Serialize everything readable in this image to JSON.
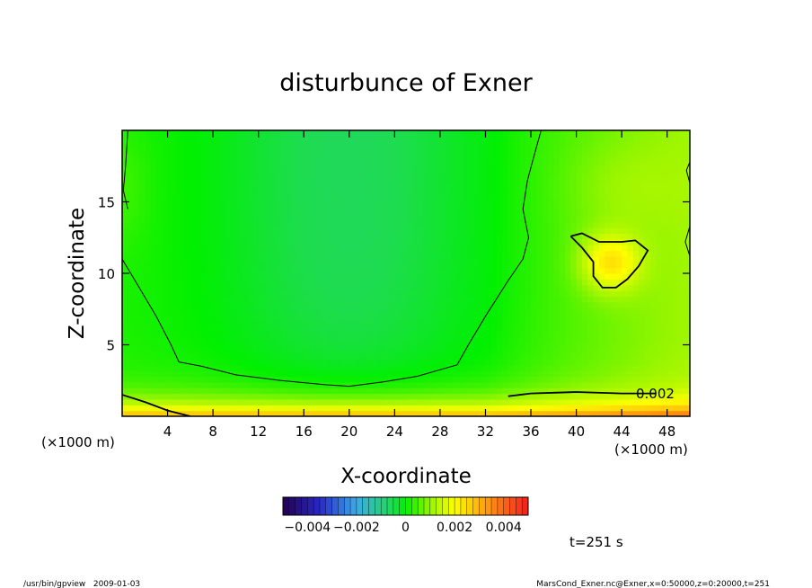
{
  "chart_data": {
    "type": "heatmap",
    "title": "disturbunce of Exner",
    "xlabel": "X-coordinate",
    "ylabel": "Z-coordinate",
    "x_unit": "(×1000 m)",
    "x_unit_right": "(×1000 m)",
    "xlim": [
      0,
      50
    ],
    "ylim": [
      0,
      20
    ],
    "x_ticks": [
      4,
      8,
      12,
      16,
      20,
      24,
      28,
      32,
      36,
      40,
      44,
      48
    ],
    "y_ticks": [
      5,
      10,
      15
    ],
    "colorbar": {
      "range": [
        -0.005,
        0.005
      ],
      "ticks": [
        {
          "value": -0.004,
          "label": "−0.004"
        },
        {
          "value": -0.002,
          "label": "−0.002"
        },
        {
          "value": 0,
          "label": "0"
        },
        {
          "value": 0.002,
          "label": "0.002"
        },
        {
          "value": 0.004,
          "label": "0.004"
        }
      ]
    },
    "contour_label": "0.002",
    "contours": [
      {
        "name": "lower-right",
        "level": 0.002,
        "points": [
          [
            34,
            1.4
          ],
          [
            36,
            1.6
          ],
          [
            40,
            1.7
          ],
          [
            44,
            1.6
          ],
          [
            47,
            1.6
          ]
        ]
      },
      {
        "name": "lower-left",
        "level": 0.002,
        "points": [
          [
            0,
            1.5
          ],
          [
            2,
            1.0
          ],
          [
            4,
            0.4
          ],
          [
            5.5,
            0.1
          ],
          [
            6,
            0
          ]
        ]
      },
      {
        "name": "right-blob",
        "level": 0.002,
        "points": [
          [
            39.5,
            12.6
          ],
          [
            40.5,
            12.8
          ],
          [
            42,
            12.2
          ],
          [
            44,
            12.2
          ],
          [
            45.2,
            12.3
          ],
          [
            46.3,
            11.6
          ],
          [
            45.5,
            10.5
          ],
          [
            44.5,
            9.6
          ],
          [
            43.5,
            9.0
          ],
          [
            42.3,
            9.0
          ],
          [
            41.5,
            9.8
          ],
          [
            41.5,
            10.8
          ],
          [
            40.5,
            11.8
          ],
          [
            39.5,
            12.6
          ]
        ]
      },
      {
        "name": "bowl",
        "level": 0.001,
        "points": [
          [
            0,
            11.0
          ],
          [
            1.5,
            9.0
          ],
          [
            3,
            7.0
          ],
          [
            4.3,
            5.0
          ],
          [
            5,
            3.8
          ],
          [
            7,
            3.5
          ],
          [
            10,
            2.9
          ],
          [
            14,
            2.5
          ],
          [
            18,
            2.2
          ],
          [
            20,
            2.1
          ],
          [
            23,
            2.4
          ],
          [
            26,
            2.8
          ],
          [
            29.5,
            3.6
          ],
          [
            30.5,
            5.0
          ],
          [
            32,
            7.0
          ],
          [
            34,
            9.5
          ],
          [
            35.3,
            11.0
          ],
          [
            35.8,
            12.5
          ],
          [
            35.3,
            14.5
          ],
          [
            35.7,
            16.5
          ],
          [
            36.2,
            18.0
          ],
          [
            36.9,
            20.0
          ]
        ]
      },
      {
        "name": "left-edge",
        "level": 0.001,
        "points": [
          [
            0.5,
            20.0
          ],
          [
            0.3,
            17.5
          ],
          [
            0.1,
            15.8
          ],
          [
            0.5,
            14.5
          ]
        ]
      },
      {
        "name": "right-edge-top",
        "level": 0.001,
        "points": [
          [
            50,
            17.8
          ],
          [
            49.7,
            17.2
          ],
          [
            50,
            16.3
          ]
        ]
      },
      {
        "name": "right-edge-mid",
        "level": 0.001,
        "points": [
          [
            50,
            13.3
          ],
          [
            49.6,
            12.2
          ],
          [
            50,
            11.2
          ]
        ]
      }
    ],
    "time_label": "t=251 s",
    "footer_left": "/usr/bin/gpview   2009-01-03",
    "footer_right": "MarsCond_Exner.nc@Exner,x=0:50000,z=0:20000,t=251"
  }
}
